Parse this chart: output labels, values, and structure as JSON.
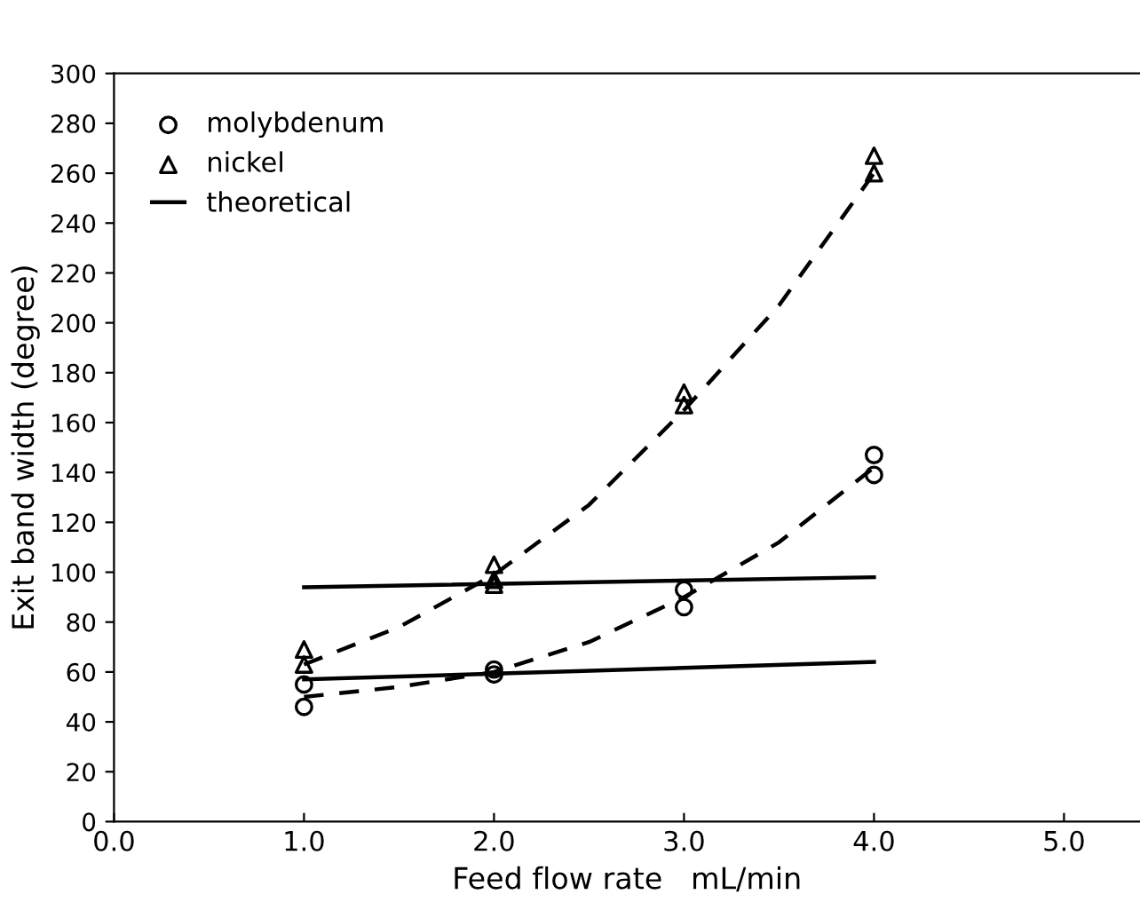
{
  "chart_data": {
    "type": "scatter",
    "xlabel": "Feed flow rate   mL/min",
    "ylabel": "Exit band width (degree)",
    "xlim": [
      0,
      5.4
    ],
    "xticks": [
      {
        "value": 0,
        "label": "0.0"
      },
      {
        "value": 1,
        "label": "1.0"
      },
      {
        "value": 2,
        "label": "2.0"
      },
      {
        "value": 3,
        "label": "3.0"
      },
      {
        "value": 4,
        "label": "4.0"
      },
      {
        "value": 5,
        "label": "5.0"
      }
    ],
    "ylim": [
      0,
      300
    ],
    "yticks": [
      0,
      20,
      40,
      60,
      80,
      100,
      120,
      140,
      160,
      180,
      200,
      220,
      240,
      260,
      280,
      300
    ],
    "grid": false,
    "legend": "top left",
    "series": [
      {
        "name": "molybdenum",
        "marker": "circle",
        "color": "#000000",
        "x": [
          1,
          1,
          2,
          2,
          3,
          3,
          4,
          4
        ],
        "values": [
          46,
          55,
          61,
          59,
          93,
          86,
          147,
          139
        ]
      },
      {
        "name": "nickel",
        "marker": "triangle",
        "color": "#000000",
        "x": [
          1,
          1,
          2,
          2,
          2,
          3,
          3,
          4,
          4
        ],
        "values": [
          69,
          63,
          103,
          97,
          95,
          172,
          167,
          267,
          260
        ]
      },
      {
        "name": "theoretical",
        "type": "line",
        "line_style": "solid",
        "color": "#000000",
        "x": [
          1,
          4
        ],
        "values": [
          94,
          98
        ]
      },
      {
        "type": "line",
        "line_style": "solid",
        "color": "#000000",
        "x": [
          1,
          4
        ],
        "values": [
          57,
          64
        ]
      },
      {
        "type": "line",
        "line_style": "dashed",
        "color": "#000000",
        "x": [
          1,
          1.5,
          2,
          2.5,
          3,
          3.5,
          4
        ],
        "values": [
          63,
          78,
          99,
          127,
          165,
          207,
          260
        ]
      },
      {
        "type": "line",
        "line_style": "dashed",
        "color": "#000000",
        "x": [
          1,
          1.5,
          2,
          2.5,
          3,
          3.5,
          4
        ],
        "values": [
          50,
          54,
          60,
          72,
          90,
          112,
          142
        ]
      }
    ]
  }
}
